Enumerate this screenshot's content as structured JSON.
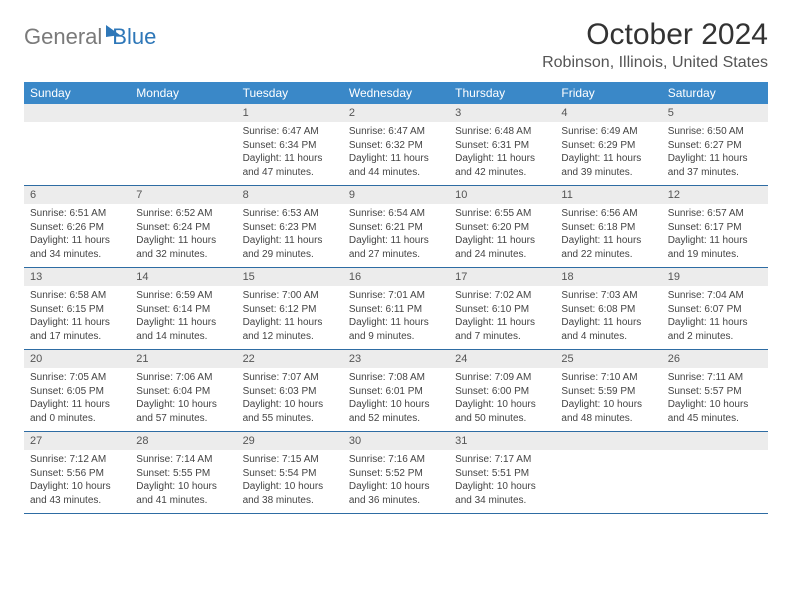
{
  "logo": {
    "text1": "General",
    "text2": "Blue"
  },
  "title": "October 2024",
  "location": "Robinson, Illinois, United States",
  "colors": {
    "header_bg": "#3a88c8",
    "header_text": "#ffffff",
    "daynum_bg": "#ececec",
    "rule": "#2e6ca3",
    "logo_gray": "#7a7a7a",
    "logo_blue": "#2e77b8"
  },
  "day_names": [
    "Sunday",
    "Monday",
    "Tuesday",
    "Wednesday",
    "Thursday",
    "Friday",
    "Saturday"
  ],
  "weeks": [
    [
      {
        "n": "",
        "empty": true
      },
      {
        "n": "",
        "empty": true
      },
      {
        "n": "1",
        "sr": "Sunrise: 6:47 AM",
        "ss": "Sunset: 6:34 PM",
        "dl": "Daylight: 11 hours and 47 minutes."
      },
      {
        "n": "2",
        "sr": "Sunrise: 6:47 AM",
        "ss": "Sunset: 6:32 PM",
        "dl": "Daylight: 11 hours and 44 minutes."
      },
      {
        "n": "3",
        "sr": "Sunrise: 6:48 AM",
        "ss": "Sunset: 6:31 PM",
        "dl": "Daylight: 11 hours and 42 minutes."
      },
      {
        "n": "4",
        "sr": "Sunrise: 6:49 AM",
        "ss": "Sunset: 6:29 PM",
        "dl": "Daylight: 11 hours and 39 minutes."
      },
      {
        "n": "5",
        "sr": "Sunrise: 6:50 AM",
        "ss": "Sunset: 6:27 PM",
        "dl": "Daylight: 11 hours and 37 minutes."
      }
    ],
    [
      {
        "n": "6",
        "sr": "Sunrise: 6:51 AM",
        "ss": "Sunset: 6:26 PM",
        "dl": "Daylight: 11 hours and 34 minutes."
      },
      {
        "n": "7",
        "sr": "Sunrise: 6:52 AM",
        "ss": "Sunset: 6:24 PM",
        "dl": "Daylight: 11 hours and 32 minutes."
      },
      {
        "n": "8",
        "sr": "Sunrise: 6:53 AM",
        "ss": "Sunset: 6:23 PM",
        "dl": "Daylight: 11 hours and 29 minutes."
      },
      {
        "n": "9",
        "sr": "Sunrise: 6:54 AM",
        "ss": "Sunset: 6:21 PM",
        "dl": "Daylight: 11 hours and 27 minutes."
      },
      {
        "n": "10",
        "sr": "Sunrise: 6:55 AM",
        "ss": "Sunset: 6:20 PM",
        "dl": "Daylight: 11 hours and 24 minutes."
      },
      {
        "n": "11",
        "sr": "Sunrise: 6:56 AM",
        "ss": "Sunset: 6:18 PM",
        "dl": "Daylight: 11 hours and 22 minutes."
      },
      {
        "n": "12",
        "sr": "Sunrise: 6:57 AM",
        "ss": "Sunset: 6:17 PM",
        "dl": "Daylight: 11 hours and 19 minutes."
      }
    ],
    [
      {
        "n": "13",
        "sr": "Sunrise: 6:58 AM",
        "ss": "Sunset: 6:15 PM",
        "dl": "Daylight: 11 hours and 17 minutes."
      },
      {
        "n": "14",
        "sr": "Sunrise: 6:59 AM",
        "ss": "Sunset: 6:14 PM",
        "dl": "Daylight: 11 hours and 14 minutes."
      },
      {
        "n": "15",
        "sr": "Sunrise: 7:00 AM",
        "ss": "Sunset: 6:12 PM",
        "dl": "Daylight: 11 hours and 12 minutes."
      },
      {
        "n": "16",
        "sr": "Sunrise: 7:01 AM",
        "ss": "Sunset: 6:11 PM",
        "dl": "Daylight: 11 hours and 9 minutes."
      },
      {
        "n": "17",
        "sr": "Sunrise: 7:02 AM",
        "ss": "Sunset: 6:10 PM",
        "dl": "Daylight: 11 hours and 7 minutes."
      },
      {
        "n": "18",
        "sr": "Sunrise: 7:03 AM",
        "ss": "Sunset: 6:08 PM",
        "dl": "Daylight: 11 hours and 4 minutes."
      },
      {
        "n": "19",
        "sr": "Sunrise: 7:04 AM",
        "ss": "Sunset: 6:07 PM",
        "dl": "Daylight: 11 hours and 2 minutes."
      }
    ],
    [
      {
        "n": "20",
        "sr": "Sunrise: 7:05 AM",
        "ss": "Sunset: 6:05 PM",
        "dl": "Daylight: 11 hours and 0 minutes."
      },
      {
        "n": "21",
        "sr": "Sunrise: 7:06 AM",
        "ss": "Sunset: 6:04 PM",
        "dl": "Daylight: 10 hours and 57 minutes."
      },
      {
        "n": "22",
        "sr": "Sunrise: 7:07 AM",
        "ss": "Sunset: 6:03 PM",
        "dl": "Daylight: 10 hours and 55 minutes."
      },
      {
        "n": "23",
        "sr": "Sunrise: 7:08 AM",
        "ss": "Sunset: 6:01 PM",
        "dl": "Daylight: 10 hours and 52 minutes."
      },
      {
        "n": "24",
        "sr": "Sunrise: 7:09 AM",
        "ss": "Sunset: 6:00 PM",
        "dl": "Daylight: 10 hours and 50 minutes."
      },
      {
        "n": "25",
        "sr": "Sunrise: 7:10 AM",
        "ss": "Sunset: 5:59 PM",
        "dl": "Daylight: 10 hours and 48 minutes."
      },
      {
        "n": "26",
        "sr": "Sunrise: 7:11 AM",
        "ss": "Sunset: 5:57 PM",
        "dl": "Daylight: 10 hours and 45 minutes."
      }
    ],
    [
      {
        "n": "27",
        "sr": "Sunrise: 7:12 AM",
        "ss": "Sunset: 5:56 PM",
        "dl": "Daylight: 10 hours and 43 minutes."
      },
      {
        "n": "28",
        "sr": "Sunrise: 7:14 AM",
        "ss": "Sunset: 5:55 PM",
        "dl": "Daylight: 10 hours and 41 minutes."
      },
      {
        "n": "29",
        "sr": "Sunrise: 7:15 AM",
        "ss": "Sunset: 5:54 PM",
        "dl": "Daylight: 10 hours and 38 minutes."
      },
      {
        "n": "30",
        "sr": "Sunrise: 7:16 AM",
        "ss": "Sunset: 5:52 PM",
        "dl": "Daylight: 10 hours and 36 minutes."
      },
      {
        "n": "31",
        "sr": "Sunrise: 7:17 AM",
        "ss": "Sunset: 5:51 PM",
        "dl": "Daylight: 10 hours and 34 minutes."
      },
      {
        "n": "",
        "empty": true
      },
      {
        "n": "",
        "empty": true
      }
    ]
  ]
}
